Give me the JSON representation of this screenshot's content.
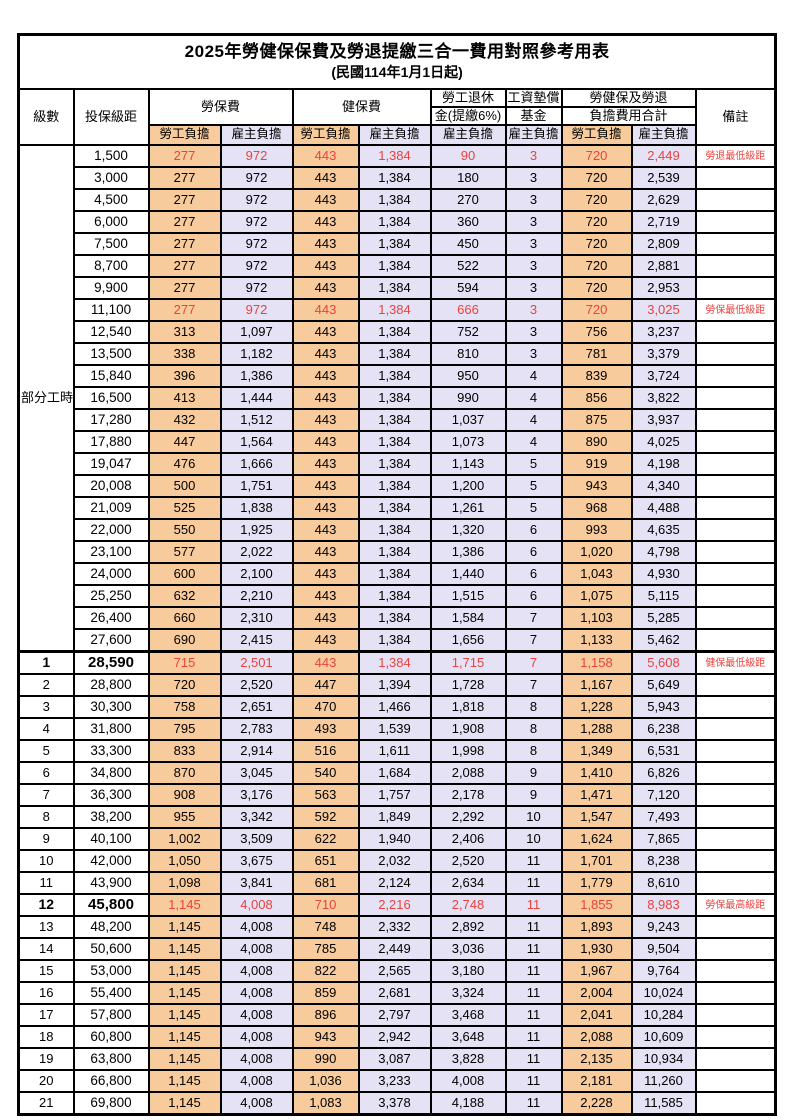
{
  "title": "2025年勞健保保費及勞退提繳三合一費用對照參考用表",
  "subtitle": "(民國114年1月1日起)",
  "colors": {
    "employee_bg": "#F8CB9C",
    "employer_bg": "#E4E2F4",
    "highlight_text": "#E8433F",
    "border": "#000000"
  },
  "header": {
    "level": "級數",
    "bracket": "投保級距",
    "labor_insurance": "勞保費",
    "health_insurance": "健保費",
    "pension_line1": "勞工退休",
    "pension_line2": "金(提繳6%)",
    "wage_fund_line1": "工資墊償",
    "wage_fund_line2": "基金",
    "total_line1": "勞健保及勞退",
    "total_line2": "負擔費用合計",
    "remark": "備註",
    "employee": "勞工負擔",
    "employer": "雇主負擔"
  },
  "part_time": {
    "label": "部分工時",
    "row_span": 23
  },
  "rows": [
    {
      "level": "",
      "bracket": "1,500",
      "cells": [
        "277",
        "972",
        "443",
        "1,384",
        "90",
        "3",
        "720",
        "2,449"
      ],
      "remark": "勞退最低級距",
      "highlight": true
    },
    {
      "level": "",
      "bracket": "3,000",
      "cells": [
        "277",
        "972",
        "443",
        "1,384",
        "180",
        "3",
        "720",
        "2,539"
      ],
      "remark": "",
      "highlight": false
    },
    {
      "level": "",
      "bracket": "4,500",
      "cells": [
        "277",
        "972",
        "443",
        "1,384",
        "270",
        "3",
        "720",
        "2,629"
      ],
      "remark": "",
      "highlight": false
    },
    {
      "level": "",
      "bracket": "6,000",
      "cells": [
        "277",
        "972",
        "443",
        "1,384",
        "360",
        "3",
        "720",
        "2,719"
      ],
      "remark": "",
      "highlight": false
    },
    {
      "level": "",
      "bracket": "7,500",
      "cells": [
        "277",
        "972",
        "443",
        "1,384",
        "450",
        "3",
        "720",
        "2,809"
      ],
      "remark": "",
      "highlight": false
    },
    {
      "level": "",
      "bracket": "8,700",
      "cells": [
        "277",
        "972",
        "443",
        "1,384",
        "522",
        "3",
        "720",
        "2,881"
      ],
      "remark": "",
      "highlight": false
    },
    {
      "level": "",
      "bracket": "9,900",
      "cells": [
        "277",
        "972",
        "443",
        "1,384",
        "594",
        "3",
        "720",
        "2,953"
      ],
      "remark": "",
      "highlight": false
    },
    {
      "level": "",
      "bracket": "11,100",
      "cells": [
        "277",
        "972",
        "443",
        "1,384",
        "666",
        "3",
        "720",
        "3,025"
      ],
      "remark": "勞保最低級距",
      "highlight": true
    },
    {
      "level": "",
      "bracket": "12,540",
      "cells": [
        "313",
        "1,097",
        "443",
        "1,384",
        "752",
        "3",
        "756",
        "3,237"
      ],
      "remark": "",
      "highlight": false
    },
    {
      "level": "",
      "bracket": "13,500",
      "cells": [
        "338",
        "1,182",
        "443",
        "1,384",
        "810",
        "3",
        "781",
        "3,379"
      ],
      "remark": "",
      "highlight": false
    },
    {
      "level": "",
      "bracket": "15,840",
      "cells": [
        "396",
        "1,386",
        "443",
        "1,384",
        "950",
        "4",
        "839",
        "3,724"
      ],
      "remark": "",
      "highlight": false
    },
    {
      "level": "",
      "bracket": "16,500",
      "cells": [
        "413",
        "1,444",
        "443",
        "1,384",
        "990",
        "4",
        "856",
        "3,822"
      ],
      "remark": "",
      "highlight": false
    },
    {
      "level": "",
      "bracket": "17,280",
      "cells": [
        "432",
        "1,512",
        "443",
        "1,384",
        "1,037",
        "4",
        "875",
        "3,937"
      ],
      "remark": "",
      "highlight": false
    },
    {
      "level": "",
      "bracket": "17,880",
      "cells": [
        "447",
        "1,564",
        "443",
        "1,384",
        "1,073",
        "4",
        "890",
        "4,025"
      ],
      "remark": "",
      "highlight": false
    },
    {
      "level": "",
      "bracket": "19,047",
      "cells": [
        "476",
        "1,666",
        "443",
        "1,384",
        "1,143",
        "5",
        "919",
        "4,198"
      ],
      "remark": "",
      "highlight": false
    },
    {
      "level": "",
      "bracket": "20,008",
      "cells": [
        "500",
        "1,751",
        "443",
        "1,384",
        "1,200",
        "5",
        "943",
        "4,340"
      ],
      "remark": "",
      "highlight": false
    },
    {
      "level": "",
      "bracket": "21,009",
      "cells": [
        "525",
        "1,838",
        "443",
        "1,384",
        "1,261",
        "5",
        "968",
        "4,488"
      ],
      "remark": "",
      "highlight": false
    },
    {
      "level": "",
      "bracket": "22,000",
      "cells": [
        "550",
        "1,925",
        "443",
        "1,384",
        "1,320",
        "6",
        "993",
        "4,635"
      ],
      "remark": "",
      "highlight": false
    },
    {
      "level": "",
      "bracket": "23,100",
      "cells": [
        "577",
        "2,022",
        "443",
        "1,384",
        "1,386",
        "6",
        "1,020",
        "4,798"
      ],
      "remark": "",
      "highlight": false
    },
    {
      "level": "",
      "bracket": "24,000",
      "cells": [
        "600",
        "2,100",
        "443",
        "1,384",
        "1,440",
        "6",
        "1,043",
        "4,930"
      ],
      "remark": "",
      "highlight": false
    },
    {
      "level": "",
      "bracket": "25,250",
      "cells": [
        "632",
        "2,210",
        "443",
        "1,384",
        "1,515",
        "6",
        "1,075",
        "5,115"
      ],
      "remark": "",
      "highlight": false
    },
    {
      "level": "",
      "bracket": "26,400",
      "cells": [
        "660",
        "2,310",
        "443",
        "1,384",
        "1,584",
        "7",
        "1,103",
        "5,285"
      ],
      "remark": "",
      "highlight": false
    },
    {
      "level": "",
      "bracket": "27,600",
      "cells": [
        "690",
        "2,415",
        "443",
        "1,384",
        "1,656",
        "7",
        "1,133",
        "5,462"
      ],
      "remark": "",
      "highlight": false
    },
    {
      "level": "1",
      "bracket": "28,590",
      "cells": [
        "715",
        "2,501",
        "443",
        "1,384",
        "1,715",
        "7",
        "1,158",
        "5,608"
      ],
      "remark": "健保最低級距",
      "highlight": true
    },
    {
      "level": "2",
      "bracket": "28,800",
      "cells": [
        "720",
        "2,520",
        "447",
        "1,394",
        "1,728",
        "7",
        "1,167",
        "5,649"
      ],
      "remark": "",
      "highlight": false
    },
    {
      "level": "3",
      "bracket": "30,300",
      "cells": [
        "758",
        "2,651",
        "470",
        "1,466",
        "1,818",
        "8",
        "1,228",
        "5,943"
      ],
      "remark": "",
      "highlight": false
    },
    {
      "level": "4",
      "bracket": "31,800",
      "cells": [
        "795",
        "2,783",
        "493",
        "1,539",
        "1,908",
        "8",
        "1,288",
        "6,238"
      ],
      "remark": "",
      "highlight": false
    },
    {
      "level": "5",
      "bracket": "33,300",
      "cells": [
        "833",
        "2,914",
        "516",
        "1,611",
        "1,998",
        "8",
        "1,349",
        "6,531"
      ],
      "remark": "",
      "highlight": false
    },
    {
      "level": "6",
      "bracket": "34,800",
      "cells": [
        "870",
        "3,045",
        "540",
        "1,684",
        "2,088",
        "9",
        "1,410",
        "6,826"
      ],
      "remark": "",
      "highlight": false
    },
    {
      "level": "7",
      "bracket": "36,300",
      "cells": [
        "908",
        "3,176",
        "563",
        "1,757",
        "2,178",
        "9",
        "1,471",
        "7,120"
      ],
      "remark": "",
      "highlight": false
    },
    {
      "level": "8",
      "bracket": "38,200",
      "cells": [
        "955",
        "3,342",
        "592",
        "1,849",
        "2,292",
        "10",
        "1,547",
        "7,493"
      ],
      "remark": "",
      "highlight": false
    },
    {
      "level": "9",
      "bracket": "40,100",
      "cells": [
        "1,002",
        "3,509",
        "622",
        "1,940",
        "2,406",
        "10",
        "1,624",
        "7,865"
      ],
      "remark": "",
      "highlight": false
    },
    {
      "level": "10",
      "bracket": "42,000",
      "cells": [
        "1,050",
        "3,675",
        "651",
        "2,032",
        "2,520",
        "11",
        "1,701",
        "8,238"
      ],
      "remark": "",
      "highlight": false
    },
    {
      "level": "11",
      "bracket": "43,900",
      "cells": [
        "1,098",
        "3,841",
        "681",
        "2,124",
        "2,634",
        "11",
        "1,779",
        "8,610"
      ],
      "remark": "",
      "highlight": false
    },
    {
      "level": "12",
      "bracket": "45,800",
      "cells": [
        "1,145",
        "4,008",
        "710",
        "2,216",
        "2,748",
        "11",
        "1,855",
        "8,983"
      ],
      "remark": "勞保最高級距",
      "highlight": true
    },
    {
      "level": "13",
      "bracket": "48,200",
      "cells": [
        "1,145",
        "4,008",
        "748",
        "2,332",
        "2,892",
        "11",
        "1,893",
        "9,243"
      ],
      "remark": "",
      "highlight": false
    },
    {
      "level": "14",
      "bracket": "50,600",
      "cells": [
        "1,145",
        "4,008",
        "785",
        "2,449",
        "3,036",
        "11",
        "1,930",
        "9,504"
      ],
      "remark": "",
      "highlight": false
    },
    {
      "level": "15",
      "bracket": "53,000",
      "cells": [
        "1,145",
        "4,008",
        "822",
        "2,565",
        "3,180",
        "11",
        "1,967",
        "9,764"
      ],
      "remark": "",
      "highlight": false
    },
    {
      "level": "16",
      "bracket": "55,400",
      "cells": [
        "1,145",
        "4,008",
        "859",
        "2,681",
        "3,324",
        "11",
        "2,004",
        "10,024"
      ],
      "remark": "",
      "highlight": false
    },
    {
      "level": "17",
      "bracket": "57,800",
      "cells": [
        "1,145",
        "4,008",
        "896",
        "2,797",
        "3,468",
        "11",
        "2,041",
        "10,284"
      ],
      "remark": "",
      "highlight": false
    },
    {
      "level": "18",
      "bracket": "60,800",
      "cells": [
        "1,145",
        "4,008",
        "943",
        "2,942",
        "3,648",
        "11",
        "2,088",
        "10,609"
      ],
      "remark": "",
      "highlight": false
    },
    {
      "level": "19",
      "bracket": "63,800",
      "cells": [
        "1,145",
        "4,008",
        "990",
        "3,087",
        "3,828",
        "11",
        "2,135",
        "10,934"
      ],
      "remark": "",
      "highlight": false
    },
    {
      "level": "20",
      "bracket": "66,800",
      "cells": [
        "1,145",
        "4,008",
        "1,036",
        "3,233",
        "4,008",
        "11",
        "2,181",
        "11,260"
      ],
      "remark": "",
      "highlight": false
    },
    {
      "level": "21",
      "bracket": "69,800",
      "cells": [
        "1,145",
        "4,008",
        "1,083",
        "3,378",
        "4,188",
        "11",
        "2,228",
        "11,585"
      ],
      "remark": "",
      "highlight": false
    }
  ]
}
